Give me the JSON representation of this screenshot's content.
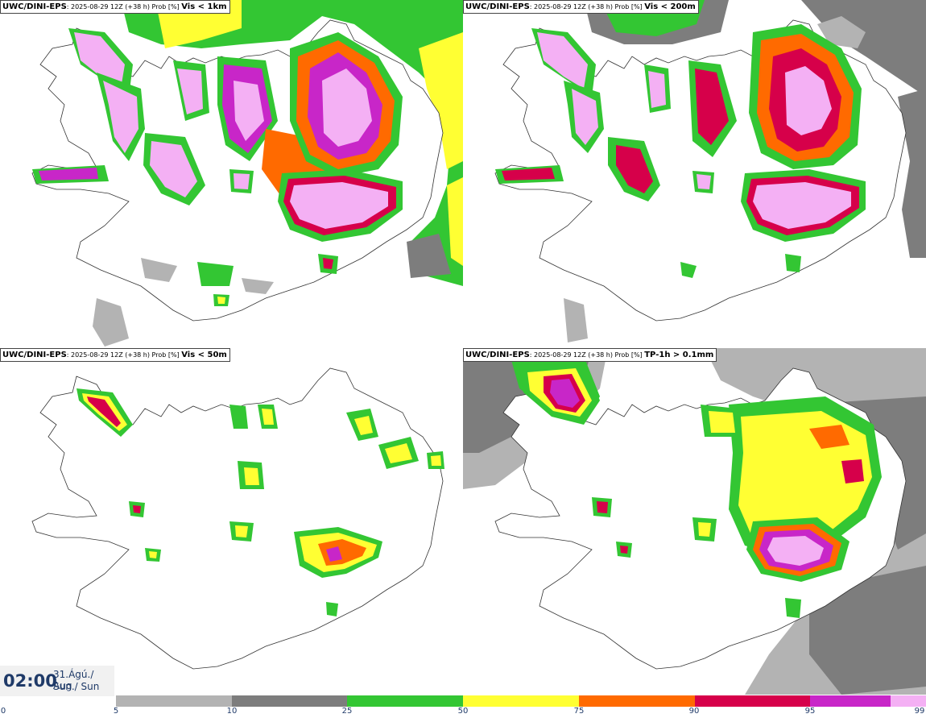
{
  "panels": [
    {
      "source": "UWC/DINI-EPS",
      "run": ": 2025-08-29 12Z (+38 h) Prob [%] ",
      "field": "Vis < 1km"
    },
    {
      "source": "UWC/DINI-EPS",
      "run": ": 2025-08-29 12Z (+38 h) Prob [%] ",
      "field": "Vis < 200m"
    },
    {
      "source": "UWC/DINI-EPS",
      "run": ": 2025-08-29 12Z (+38 h) Prob [%] ",
      "field": "Vis < 50m"
    },
    {
      "source": "UWC/DINI-EPS",
      "run": ": 2025-08-29 12Z (+38 h) Prob [%] ",
      "field": "TP-1h > 0.1mm"
    }
  ],
  "valid_time": {
    "clock": "02:00",
    "date": "31.Ágú./ Aug",
    "weekday": "Sun./ Sun"
  },
  "colorbar": {
    "ticks": [
      "0",
      "5",
      "10",
      "25",
      "50",
      "75",
      "90",
      "95",
      "99"
    ],
    "bins": [
      {
        "from": "5",
        "to": "10",
        "color": "#b3b3b3"
      },
      {
        "from": "10",
        "to": "25",
        "color": "#7d7d7d"
      },
      {
        "from": "25",
        "to": "50",
        "color": "#33c633"
      },
      {
        "from": "50",
        "to": "75",
        "color": "#ffff33"
      },
      {
        "from": "75",
        "to": "90",
        "color": "#ff6a00"
      },
      {
        "from": "90",
        "to": "95",
        "color": "#d6004a"
      },
      {
        "from": "95",
        "to": "99",
        "color": "#c826c8"
      },
      {
        "from": "99",
        "to": "100",
        "color": "#f4b0f4"
      }
    ]
  }
}
